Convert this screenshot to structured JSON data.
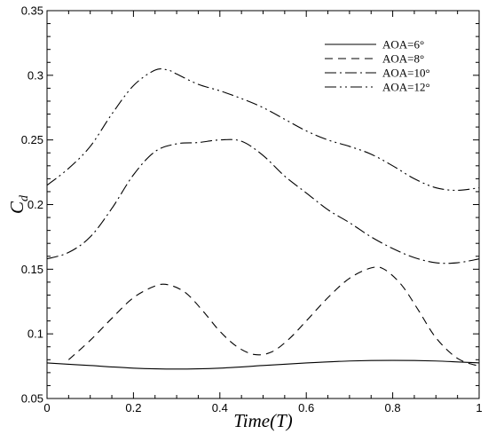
{
  "chart_data": {
    "type": "line",
    "xlabel": "Time(T)",
    "ylabel": "C",
    "ylabel_subscript": "d",
    "xlim": [
      0,
      1
    ],
    "ylim": [
      0.05,
      0.35
    ],
    "xticks": [
      "0",
      "0.2",
      "0.4",
      "0.6",
      "0.8",
      "1"
    ],
    "yticks": [
      "0.05",
      "0.1",
      "0.15",
      "0.2",
      "0.25",
      "0.3",
      "0.35"
    ],
    "grid": false,
    "legend_position": "top-right",
    "series": [
      {
        "name": "AOA=6°",
        "dash": "solid",
        "x": [
          0,
          0.1,
          0.2,
          0.3,
          0.4,
          0.5,
          0.6,
          0.7,
          0.8,
          0.9,
          1.0
        ],
        "y": [
          0.0775,
          0.0755,
          0.0735,
          0.0728,
          0.0735,
          0.0755,
          0.0775,
          0.079,
          0.0795,
          0.079,
          0.0775
        ]
      },
      {
        "name": "AOA=8°",
        "dash": "dashed",
        "x": [
          0.05,
          0.1,
          0.15,
          0.2,
          0.25,
          0.28,
          0.32,
          0.36,
          0.4,
          0.44,
          0.48,
          0.52,
          0.56,
          0.6,
          0.65,
          0.7,
          0.75,
          0.78,
          0.82,
          0.86,
          0.9,
          0.95,
          1.0
        ],
        "y": [
          0.08,
          0.095,
          0.112,
          0.128,
          0.137,
          0.138,
          0.132,
          0.118,
          0.102,
          0.09,
          0.084,
          0.086,
          0.096,
          0.11,
          0.128,
          0.143,
          0.151,
          0.15,
          0.138,
          0.118,
          0.097,
          0.081,
          0.075
        ]
      },
      {
        "name": "AOA=10°",
        "dash": "dashdot",
        "x": [
          0,
          0.05,
          0.1,
          0.15,
          0.2,
          0.25,
          0.3,
          0.35,
          0.4,
          0.45,
          0.5,
          0.55,
          0.6,
          0.65,
          0.7,
          0.75,
          0.8,
          0.85,
          0.9,
          0.95,
          1.0
        ],
        "y": [
          0.158,
          0.163,
          0.175,
          0.197,
          0.223,
          0.241,
          0.247,
          0.248,
          0.25,
          0.249,
          0.238,
          0.222,
          0.209,
          0.196,
          0.186,
          0.175,
          0.166,
          0.159,
          0.155,
          0.155,
          0.158
        ]
      },
      {
        "name": "AOA=12°",
        "dash": "dashdotdot",
        "x": [
          0,
          0.05,
          0.1,
          0.15,
          0.2,
          0.25,
          0.28,
          0.3,
          0.35,
          0.4,
          0.45,
          0.5,
          0.55,
          0.6,
          0.65,
          0.7,
          0.75,
          0.8,
          0.85,
          0.9,
          0.95,
          1.0
        ],
        "y": [
          0.215,
          0.228,
          0.245,
          0.27,
          0.292,
          0.304,
          0.304,
          0.301,
          0.293,
          0.288,
          0.282,
          0.275,
          0.266,
          0.257,
          0.25,
          0.245,
          0.239,
          0.23,
          0.22,
          0.213,
          0.211,
          0.213
        ]
      }
    ]
  }
}
